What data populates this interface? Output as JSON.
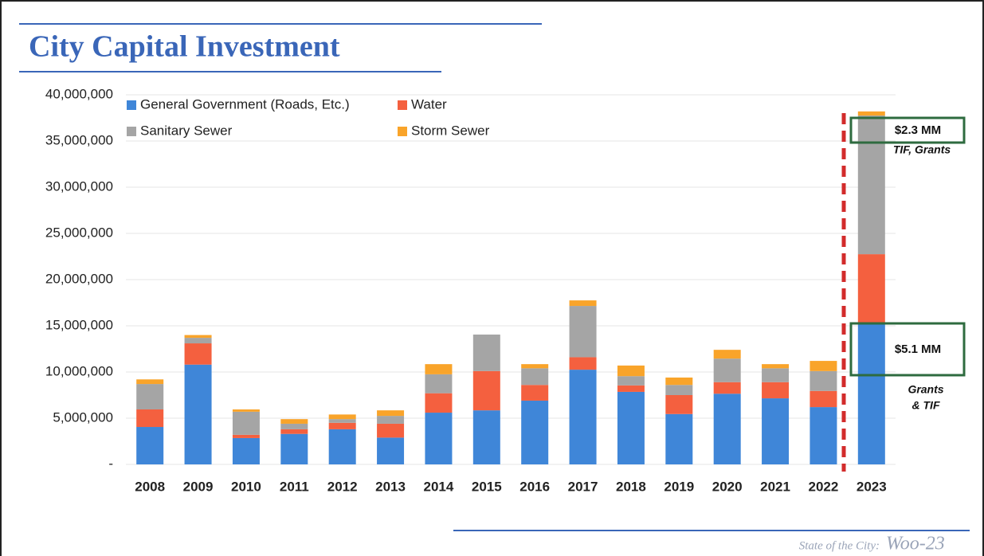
{
  "chart_data": {
    "type": "bar",
    "stacked": true,
    "title": "City Capital Investment",
    "categories": [
      "2008",
      "2009",
      "2010",
      "2011",
      "2012",
      "2013",
      "2014",
      "2015",
      "2016",
      "2017",
      "2018",
      "2019",
      "2020",
      "2021",
      "2022",
      "2023"
    ],
    "series": [
      {
        "name": "General Government (Roads, Etc.)",
        "color": "#3f86d8",
        "values": [
          4050000,
          10800000,
          2850000,
          3300000,
          3800000,
          2900000,
          5600000,
          5850000,
          6900000,
          10250000,
          7850000,
          5450000,
          7650000,
          7150000,
          6200000,
          15250000
        ]
      },
      {
        "name": "Water",
        "color": "#f4603f",
        "values": [
          1900000,
          2300000,
          350000,
          500000,
          700000,
          1500000,
          2100000,
          4250000,
          1700000,
          1350000,
          700000,
          2050000,
          1250000,
          1750000,
          1750000,
          7500000
        ]
      },
      {
        "name": "Sanitary Sewer",
        "color": "#a5a5a5",
        "values": [
          2750000,
          600000,
          2500000,
          600000,
          400000,
          850000,
          2050000,
          3950000,
          1800000,
          5550000,
          1000000,
          1100000,
          2550000,
          1500000,
          2150000,
          15000000
        ]
      },
      {
        "name": "Storm Sewer",
        "color": "#f9a42a",
        "values": [
          500000,
          300000,
          250000,
          500000,
          500000,
          600000,
          1100000,
          0,
          450000,
          600000,
          1150000,
          800000,
          950000,
          450000,
          1100000,
          450000
        ]
      }
    ],
    "ylim": [
      0,
      40000000
    ],
    "yticks": [
      {
        "value": 0,
        "label": "-"
      },
      {
        "value": 5000000,
        "label": "5,000,000"
      },
      {
        "value": 10000000,
        "label": "10,000,000"
      },
      {
        "value": 15000000,
        "label": "15,000,000"
      },
      {
        "value": 20000000,
        "label": "20,000,000"
      },
      {
        "value": 25000000,
        "label": "25,000,000"
      },
      {
        "value": 30000000,
        "label": "30,000,000"
      },
      {
        "value": 35000000,
        "label": "35,000,000"
      },
      {
        "value": 40000000,
        "label": "40,000,000"
      }
    ],
    "grid": true,
    "annotations": [
      "$2.3 MM",
      "TIF, Grants",
      "$5.1 MM",
      "Grants",
      "& TIF"
    ],
    "footer": [
      "State of the City:",
      "Woo-23"
    ]
  }
}
